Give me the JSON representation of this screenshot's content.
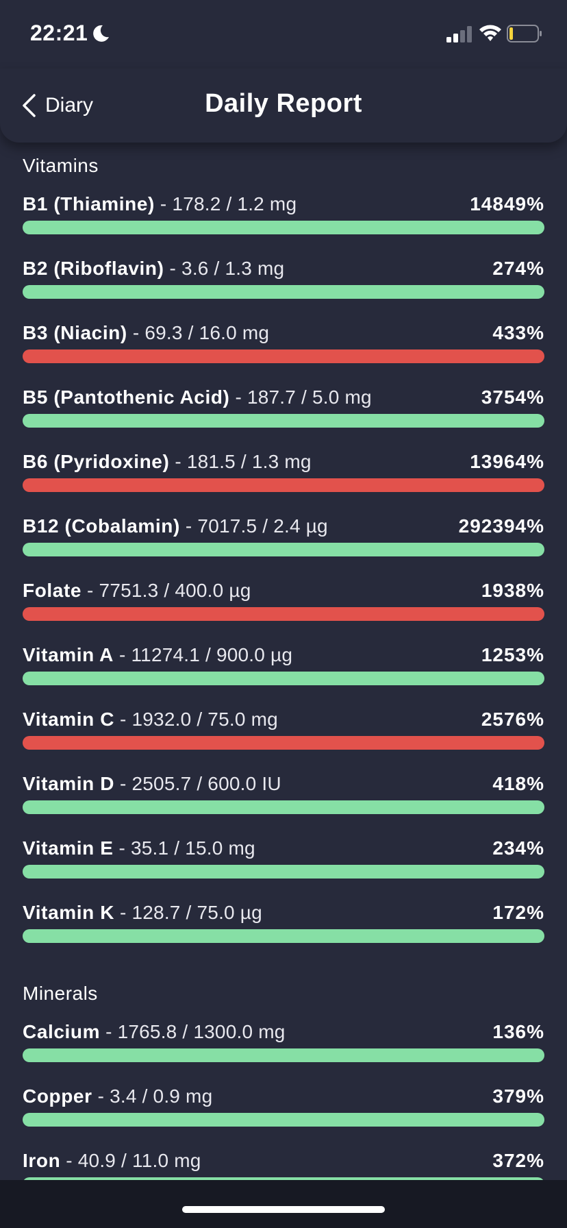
{
  "status_bar": {
    "time": "22:21"
  },
  "header": {
    "back_label": "Diary",
    "title": "Daily Report"
  },
  "colors": {
    "good": "#86dfa5",
    "bad": "#e2524c",
    "background": "#272a3b"
  },
  "sections": [
    {
      "title": "Vitamins",
      "items": [
        {
          "name": "B1 (Thiamine)",
          "amount": " - 178.2 / 1.2 mg",
          "percent": "14849%",
          "status": "good"
        },
        {
          "name": "B2 (Riboflavin)",
          "amount": " - 3.6 / 1.3 mg",
          "percent": "274%",
          "status": "good"
        },
        {
          "name": "B3 (Niacin)",
          "amount": " - 69.3 / 16.0 mg",
          "percent": "433%",
          "status": "bad"
        },
        {
          "name": "B5 (Pantothenic Acid)",
          "amount": " - 187.7 / 5.0 mg",
          "percent": "3754%",
          "status": "good"
        },
        {
          "name": "B6 (Pyridoxine)",
          "amount": " - 181.5 / 1.3 mg",
          "percent": "13964%",
          "status": "bad"
        },
        {
          "name": "B12 (Cobalamin)",
          "amount": " - 7017.5 / 2.4 µg",
          "percent": "292394%",
          "status": "good"
        },
        {
          "name": "Folate",
          "amount": " - 7751.3 / 400.0 µg",
          "percent": "1938%",
          "status": "bad"
        },
        {
          "name": "Vitamin A",
          "amount": " - 11274.1 / 900.0 µg",
          "percent": "1253%",
          "status": "good"
        },
        {
          "name": "Vitamin C",
          "amount": " - 1932.0 / 75.0 mg",
          "percent": "2576%",
          "status": "bad"
        },
        {
          "name": "Vitamin D",
          "amount": " - 2505.7 / 600.0 IU",
          "percent": "418%",
          "status": "good"
        },
        {
          "name": "Vitamin E",
          "amount": " - 35.1 / 15.0 mg",
          "percent": "234%",
          "status": "good"
        },
        {
          "name": "Vitamin K",
          "amount": " - 128.7 / 75.0 µg",
          "percent": "172%",
          "status": "good"
        }
      ]
    },
    {
      "title": "Minerals",
      "items": [
        {
          "name": "Calcium",
          "amount": " - 1765.8 / 1300.0 mg",
          "percent": "136%",
          "status": "good"
        },
        {
          "name": "Copper",
          "amount": " - 3.4 / 0.9 mg",
          "percent": "379%",
          "status": "good"
        },
        {
          "name": "Iron",
          "amount": " - 40.9 / 11.0 mg",
          "percent": "372%",
          "status": "good"
        }
      ]
    }
  ]
}
